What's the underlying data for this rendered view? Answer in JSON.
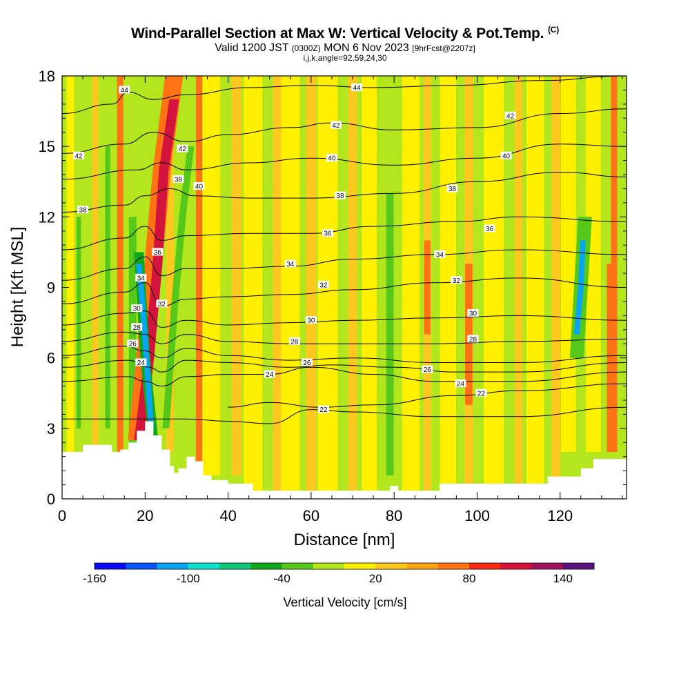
{
  "header": {
    "title": "Wind-Parallel Section at Max W: Vertical Velocity & Pot.Temp.",
    "title_mark": "(C)",
    "valid_prefix": "Valid 1200 JST",
    "valid_utc": "(0300Z)",
    "valid_date": "MON 6 Nov 2023",
    "forecast_tag": "[9hrFcst@2207z]",
    "indices": "i,j,k,angle=92,59,24,30"
  },
  "chart_data": {
    "type": "heatmap",
    "title": "Wind-Parallel Section at Max W: Vertical Velocity & Pot.Temp.",
    "xlabel": "Distance [nm]",
    "ylabel": "Height [Kft MSL]",
    "xlim": [
      0,
      136
    ],
    "ylim": [
      0,
      18
    ],
    "x_ticks": [
      0,
      20,
      40,
      60,
      80,
      100,
      120
    ],
    "x_tick_labels": [
      "0",
      "20",
      "40",
      "60",
      "80",
      "100",
      "120"
    ],
    "y_ticks": [
      0,
      3,
      6,
      9,
      12,
      15,
      18
    ],
    "y_tick_labels": [
      "0",
      "3",
      "6",
      "9",
      "12",
      "15",
      "18"
    ],
    "grid": false,
    "colorbar": {
      "label": "Vertical Velocity [cm/s]",
      "tick_values": [
        -160,
        -100,
        -40,
        20,
        80,
        140
      ],
      "tick_labels": [
        "-160",
        "-100",
        "-40",
        "20",
        "80",
        "140"
      ],
      "colors": [
        "#0a0af5",
        "#0a55f5",
        "#0aa5f0",
        "#10e0d0",
        "#10c878",
        "#10a81a",
        "#55c81a",
        "#b4e61e",
        "#fff000",
        "#ffc81e",
        "#ffa514",
        "#ff7314",
        "#f52d14",
        "#d2143c",
        "#a0145a",
        "#5a147d"
      ]
    },
    "field_colors": {
      "strong_updraft": "#d2143c",
      "updraft": "#ff7314",
      "weak_updraft": "#ffc81e",
      "neutral": "#fff000",
      "weak_downdraft": "#b4e61e",
      "downdraft": "#55c81a",
      "strong_downdraft": "#10a81a",
      "very_strong_downdraft": "#0aa5f0",
      "terrain": "#ffffff"
    },
    "terrain_height_kft": [
      [
        0,
        2.0
      ],
      [
        5,
        2.3
      ],
      [
        10,
        2.3
      ],
      [
        12,
        2.0
      ],
      [
        14,
        2.1
      ],
      [
        16,
        2.4
      ],
      [
        18,
        2.9
      ],
      [
        20,
        3.3
      ],
      [
        22,
        2.7
      ],
      [
        24,
        2.1
      ],
      [
        26,
        1.4
      ],
      [
        27,
        1.1
      ],
      [
        28,
        1.3
      ],
      [
        30,
        1.8
      ],
      [
        32,
        1.6
      ],
      [
        34,
        1.0
      ],
      [
        36,
        0.8
      ],
      [
        40,
        0.65
      ],
      [
        46,
        0.35
      ],
      [
        60,
        0.35
      ],
      [
        78,
        0.35
      ],
      [
        79,
        0.55
      ],
      [
        81,
        0.35
      ],
      [
        90,
        0.35
      ],
      [
        91,
        0.65
      ],
      [
        117,
        0.95
      ],
      [
        125,
        1.3
      ],
      [
        128,
        1.7
      ],
      [
        136,
        1.7
      ]
    ],
    "theta_contours": [
      {
        "label": "22",
        "points": [
          [
            0,
            3.4
          ],
          [
            30,
            3.4
          ],
          [
            40,
            3.3
          ],
          [
            50,
            3.2
          ],
          [
            60,
            3.8
          ],
          [
            70,
            3.7
          ],
          [
            90,
            3.5
          ],
          [
            110,
            3.5
          ],
          [
            136,
            3.9
          ]
        ]
      },
      {
        "label": "22",
        "points": [
          [
            40,
            3.9
          ],
          [
            50,
            4.1
          ],
          [
            62,
            3.9
          ],
          [
            75,
            4.0
          ],
          [
            95,
            4.4
          ],
          [
            110,
            4.6
          ],
          [
            136,
            4.9
          ]
        ]
      },
      {
        "label": "24",
        "points": [
          [
            0,
            5.0
          ],
          [
            16,
            5.2
          ],
          [
            20,
            5.0
          ],
          [
            24,
            4.8
          ],
          [
            30,
            5.2
          ],
          [
            40,
            5.3
          ],
          [
            50,
            5.3
          ],
          [
            60,
            5.6
          ],
          [
            75,
            5.3
          ],
          [
            90,
            5.0
          ],
          [
            110,
            5.0
          ],
          [
            136,
            5.4
          ]
        ]
      },
      {
        "label": "26",
        "points": [
          [
            0,
            5.6
          ],
          [
            16,
            5.9
          ],
          [
            21,
            5.6
          ],
          [
            24,
            5.4
          ],
          [
            30,
            5.9
          ],
          [
            40,
            5.8
          ],
          [
            55,
            5.6
          ],
          [
            65,
            5.7
          ],
          [
            80,
            5.6
          ],
          [
            95,
            5.4
          ],
          [
            110,
            5.4
          ],
          [
            136,
            5.8
          ]
        ]
      },
      {
        "label": "26",
        "points": [
          [
            0,
            6.1
          ],
          [
            15,
            6.5
          ],
          [
            20,
            6.3
          ],
          [
            24,
            6.0
          ],
          [
            30,
            6.4
          ],
          [
            40,
            6.1
          ],
          [
            55,
            5.9
          ],
          [
            70,
            6.0
          ],
          [
            90,
            5.8
          ],
          [
            110,
            5.8
          ],
          [
            136,
            6.1
          ]
        ]
      },
      {
        "label": "28",
        "points": [
          [
            0,
            6.7
          ],
          [
            15,
            7.1
          ],
          [
            20,
            7.0
          ],
          [
            24,
            6.6
          ],
          [
            30,
            7.0
          ],
          [
            40,
            6.7
          ],
          [
            55,
            6.6
          ],
          [
            70,
            6.6
          ],
          [
            90,
            6.6
          ],
          [
            110,
            6.7
          ],
          [
            136,
            6.8
          ]
        ]
      },
      {
        "label": "30",
        "points": [
          [
            0,
            7.4
          ],
          [
            15,
            7.9
          ],
          [
            20,
            8.0
          ],
          [
            24,
            7.3
          ],
          [
            30,
            7.6
          ],
          [
            40,
            7.4
          ],
          [
            55,
            7.5
          ],
          [
            70,
            7.6
          ],
          [
            90,
            7.7
          ],
          [
            110,
            7.8
          ],
          [
            136,
            7.6
          ]
        ]
      },
      {
        "label": "32",
        "points": [
          [
            0,
            8.3
          ],
          [
            15,
            8.8
          ],
          [
            20,
            9.2
          ],
          [
            24,
            8.2
          ],
          [
            30,
            8.5
          ],
          [
            40,
            8.6
          ],
          [
            55,
            8.7
          ],
          [
            70,
            8.9
          ],
          [
            90,
            9.2
          ],
          [
            110,
            9.4
          ],
          [
            136,
            9.0
          ]
        ]
      },
      {
        "label": "34",
        "points": [
          [
            0,
            9.3
          ],
          [
            15,
            9.8
          ],
          [
            20,
            10.3
          ],
          [
            24,
            9.5
          ],
          [
            30,
            9.8
          ],
          [
            40,
            9.8
          ],
          [
            55,
            9.9
          ],
          [
            70,
            10.2
          ],
          [
            90,
            10.4
          ],
          [
            110,
            10.6
          ],
          [
            136,
            10.4
          ]
        ]
      },
      {
        "label": "36",
        "points": [
          [
            0,
            10.6
          ],
          [
            15,
            11.1
          ],
          [
            20,
            11.6
          ],
          [
            24,
            11.0
          ],
          [
            30,
            11.2
          ],
          [
            45,
            11.3
          ],
          [
            60,
            11.3
          ],
          [
            75,
            11.6
          ],
          [
            95,
            11.8
          ],
          [
            110,
            12.0
          ],
          [
            136,
            11.8
          ]
        ]
      },
      {
        "label": "38",
        "points": [
          [
            0,
            12.2
          ],
          [
            15,
            12.5
          ],
          [
            20,
            12.9
          ],
          [
            26,
            13.2
          ],
          [
            32,
            12.9
          ],
          [
            45,
            12.8
          ],
          [
            60,
            12.8
          ],
          [
            80,
            13.0
          ],
          [
            100,
            13.5
          ],
          [
            120,
            13.9
          ],
          [
            136,
            13.7
          ]
        ]
      },
      {
        "label": "40",
        "points": [
          [
            0,
            13.6
          ],
          [
            18,
            14.0
          ],
          [
            24,
            14.3
          ],
          [
            30,
            14.0
          ],
          [
            45,
            14.3
          ],
          [
            60,
            14.5
          ],
          [
            80,
            14.2
          ],
          [
            100,
            14.5
          ],
          [
            120,
            15.1
          ],
          [
            136,
            15.0
          ]
        ]
      },
      {
        "label": "42",
        "points": [
          [
            0,
            14.7
          ],
          [
            15,
            15.1
          ],
          [
            22,
            15.6
          ],
          [
            30,
            15.2
          ],
          [
            40,
            15.5
          ],
          [
            55,
            15.8
          ],
          [
            65,
            16.0
          ],
          [
            80,
            15.7
          ],
          [
            100,
            15.8
          ],
          [
            120,
            16.4
          ],
          [
            136,
            16.6
          ]
        ]
      },
      {
        "label": "44",
        "points": [
          [
            0,
            16.4
          ],
          [
            12,
            16.8
          ],
          [
            16,
            17.3
          ],
          [
            22,
            17.0
          ],
          [
            30,
            17.2
          ],
          [
            45,
            17.5
          ],
          [
            60,
            17.6
          ],
          [
            75,
            17.5
          ],
          [
            95,
            17.6
          ],
          [
            115,
            17.8
          ],
          [
            136,
            18.0
          ]
        ]
      }
    ],
    "contour_labels": [
      {
        "text": "44",
        "x": 15,
        "y": 17.4
      },
      {
        "text": "44",
        "x": 71,
        "y": 17.5
      },
      {
        "text": "42",
        "x": 4,
        "y": 14.6
      },
      {
        "text": "42",
        "x": 29,
        "y": 14.9
      },
      {
        "text": "42",
        "x": 66,
        "y": 15.9
      },
      {
        "text": "42",
        "x": 108,
        "y": 16.3
      },
      {
        "text": "40",
        "x": 33,
        "y": 13.3
      },
      {
        "text": "40",
        "x": 65,
        "y": 14.5
      },
      {
        "text": "40",
        "x": 107,
        "y": 14.6
      },
      {
        "text": "38",
        "x": 5,
        "y": 12.3
      },
      {
        "text": "38",
        "x": 28,
        "y": 13.6
      },
      {
        "text": "38",
        "x": 67,
        "y": 12.9
      },
      {
        "text": "38",
        "x": 94,
        "y": 13.2
      },
      {
        "text": "36",
        "x": 23,
        "y": 10.5
      },
      {
        "text": "36",
        "x": 64,
        "y": 11.3
      },
      {
        "text": "36",
        "x": 103,
        "y": 11.5
      },
      {
        "text": "34",
        "x": 19,
        "y": 9.4
      },
      {
        "text": "34",
        "x": 55,
        "y": 10.0
      },
      {
        "text": "34",
        "x": 91,
        "y": 10.4
      },
      {
        "text": "32",
        "x": 24,
        "y": 8.3
      },
      {
        "text": "32",
        "x": 63,
        "y": 9.1
      },
      {
        "text": "32",
        "x": 95,
        "y": 9.3
      },
      {
        "text": "30",
        "x": 18,
        "y": 8.1
      },
      {
        "text": "30",
        "x": 60,
        "y": 7.6
      },
      {
        "text": "30",
        "x": 99,
        "y": 7.9
      },
      {
        "text": "28",
        "x": 18,
        "y": 7.3
      },
      {
        "text": "28",
        "x": 56,
        "y": 6.7
      },
      {
        "text": "28",
        "x": 99,
        "y": 6.8
      },
      {
        "text": "26",
        "x": 17,
        "y": 6.6
      },
      {
        "text": "26",
        "x": 59,
        "y": 5.8
      },
      {
        "text": "26",
        "x": 88,
        "y": 5.5
      },
      {
        "text": "24",
        "x": 19,
        "y": 5.8
      },
      {
        "text": "24",
        "x": 50,
        "y": 5.3
      },
      {
        "text": "24",
        "x": 96,
        "y": 4.9
      },
      {
        "text": "22",
        "x": 63,
        "y": 3.8
      },
      {
        "text": "22",
        "x": 101,
        "y": 4.5
      }
    ]
  }
}
